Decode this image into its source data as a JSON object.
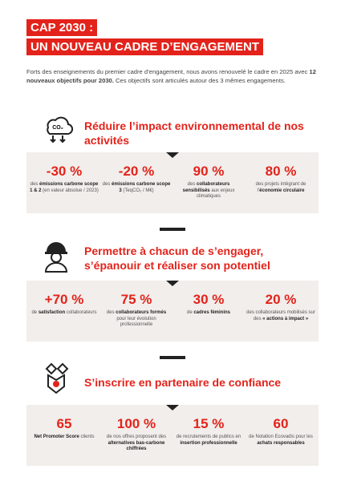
{
  "header": {
    "title_lines": [
      "CAP 2030 :",
      "UN NOUVEAU CADRE D’ENGAGEMENT"
    ]
  },
  "intro": [
    {
      "text": "Forts des enseignements du premier cadre d’engagement, nous avons renouvelé le cadre en 2025 avec ",
      "bold": false
    },
    {
      "text": "12 nouveaux objectifs pour 2030.",
      "bold": true
    },
    {
      "text": " Ces objectifs sont articulés autour des 3 mêmes engagements.",
      "bold": false
    }
  ],
  "sections": [
    {
      "title": "Réduire l’impact environnemental de nos activités",
      "stats": [
        {
          "value": "-30 %",
          "label": [
            {
              "text": "des ",
              "bold": false
            },
            {
              "text": "émissions carbone scope 1 & 2",
              "bold": true
            },
            {
              "text": " (en valeur absolue / 2023)",
              "bold": false
            }
          ]
        },
        {
          "value": "-20 %",
          "label": [
            {
              "text": "des ",
              "bold": false
            },
            {
              "text": "émissions carbone scope 3",
              "bold": true
            },
            {
              "text": " (TeqCO₂ / M€)",
              "bold": false
            }
          ]
        },
        {
          "value": "90 %",
          "label": [
            {
              "text": "des ",
              "bold": false
            },
            {
              "text": "collaborateurs sensibilisés",
              "bold": true
            },
            {
              "text": " aux enjeux climatiques",
              "bold": false
            }
          ]
        },
        {
          "value": "80 %",
          "label": [
            {
              "text": "des projets intégrant de l’",
              "bold": false
            },
            {
              "text": "économie circulaire",
              "bold": true
            }
          ]
        }
      ]
    },
    {
      "title": "Permettre à chacun de s’engager, s’épanouir et réaliser son potentiel",
      "stats": [
        {
          "value": "+70 %",
          "label": [
            {
              "text": "de ",
              "bold": false
            },
            {
              "text": "satisfaction",
              "bold": true
            },
            {
              "text": " collaborateurs",
              "bold": false
            }
          ]
        },
        {
          "value": "75 %",
          "label": [
            {
              "text": "des ",
              "bold": false
            },
            {
              "text": "collaborateurs formés",
              "bold": true
            },
            {
              "text": " pour leur évolution professionnelle",
              "bold": false
            }
          ]
        },
        {
          "value": "30 %",
          "label": [
            {
              "text": "de ",
              "bold": false
            },
            {
              "text": "cadres féminins",
              "bold": true
            }
          ]
        },
        {
          "value": "20 %",
          "label": [
            {
              "text": "des collaborateurs mobilisés sur des ",
              "bold": false
            },
            {
              "text": "« actions à impact »",
              "bold": true
            }
          ]
        }
      ]
    },
    {
      "title": "S’inscrire en partenaire de confiance",
      "stats": [
        {
          "value": "65",
          "label": [
            {
              "text": "Net Promoter Score",
              "bold": true
            },
            {
              "text": " clients",
              "bold": false
            }
          ]
        },
        {
          "value": "100 %",
          "label": [
            {
              "text": "de nos offres proposent des ",
              "bold": false
            },
            {
              "text": "alternatives bas-carbone chiffrées",
              "bold": true
            }
          ]
        },
        {
          "value": "15 %",
          "label": [
            {
              "text": "de recrutements de publics en ",
              "bold": false
            },
            {
              "text": "insertion professionnelle",
              "bold": true
            }
          ]
        },
        {
          "value": "60",
          "label": [
            {
              "text": "de Notation Ecovadis pour les ",
              "bold": false
            },
            {
              "text": "achats responsables",
              "bold": true
            }
          ]
        }
      ]
    }
  ]
}
